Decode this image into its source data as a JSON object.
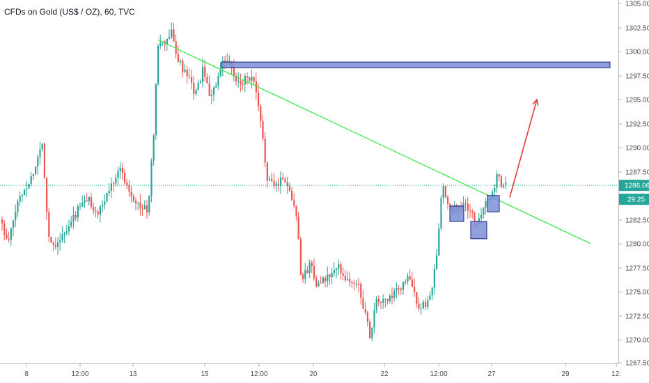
{
  "header": {
    "title": "CFDs on Gold (US$ / OZ), 60, TVC"
  },
  "chart_data": {
    "type": "candlestick",
    "ylim": [
      1267.5,
      1305.0
    ],
    "y_ticks": [
      "1305.00",
      "1302.50",
      "1300.00",
      "1297.50",
      "1295.00",
      "1292.50",
      "1290.00",
      "1287.50",
      "1282.50",
      "1280.00",
      "1277.50",
      "1275.00",
      "1272.50",
      "1270.00",
      "1267.50"
    ],
    "x_ticks": [
      "8",
      "12:00",
      "13",
      "15",
      "12:00",
      "20",
      "22",
      "12:00",
      "27",
      "29",
      "12:"
    ],
    "current_price": "1286.06",
    "countdown": "29:25",
    "price_path": [
      [
        0,
        1282.5
      ],
      [
        10,
        1279.8
      ],
      [
        25,
        1284.5
      ],
      [
        45,
        1287.0
      ],
      [
        60,
        1290.5
      ],
      [
        68,
        1281.0
      ],
      [
        75,
        1279.8
      ],
      [
        95,
        1281.2
      ],
      [
        110,
        1283.5
      ],
      [
        125,
        1284.7
      ],
      [
        140,
        1283.0
      ],
      [
        155,
        1285.5
      ],
      [
        170,
        1288.0
      ],
      [
        185,
        1285.5
      ],
      [
        200,
        1283.8
      ],
      [
        212,
        1283.5
      ],
      [
        220,
        1292.0
      ],
      [
        225,
        1300.5
      ],
      [
        235,
        1300.8
      ],
      [
        245,
        1302.0
      ],
      [
        255,
        1299.0
      ],
      [
        270,
        1297.0
      ],
      [
        280,
        1295.5
      ],
      [
        290,
        1298.0
      ],
      [
        300,
        1295.5
      ],
      [
        310,
        1296.5
      ],
      [
        320,
        1299.0
      ],
      [
        330,
        1298.5
      ],
      [
        340,
        1296.5
      ],
      [
        355,
        1297.5
      ],
      [
        365,
        1296.5
      ],
      [
        372,
        1293.0
      ],
      [
        378,
        1290.0
      ],
      [
        383,
        1286.5
      ],
      [
        395,
        1286.0
      ],
      [
        405,
        1287.0
      ],
      [
        415,
        1285.5
      ],
      [
        425,
        1283.0
      ],
      [
        432,
        1276.0
      ],
      [
        445,
        1278.0
      ],
      [
        455,
        1275.5
      ],
      [
        470,
        1276.5
      ],
      [
        485,
        1277.5
      ],
      [
        500,
        1276.0
      ],
      [
        515,
        1275.5
      ],
      [
        525,
        1272.0
      ],
      [
        530,
        1270.5
      ],
      [
        540,
        1274.0
      ],
      [
        555,
        1274.0
      ],
      [
        570,
        1275.0
      ],
      [
        585,
        1276.5
      ],
      [
        600,
        1273.5
      ],
      [
        612,
        1273.5
      ],
      [
        622,
        1276.5
      ],
      [
        628,
        1280.0
      ],
      [
        634,
        1286.0
      ],
      [
        645,
        1283.5
      ],
      [
        660,
        1284.0
      ],
      [
        675,
        1283.5
      ],
      [
        682,
        1281.5
      ],
      [
        695,
        1284.5
      ],
      [
        705,
        1285.0
      ],
      [
        712,
        1287.0
      ],
      [
        720,
        1286.0
      ],
      [
        728,
        1286.0
      ]
    ],
    "resistance_zone": {
      "y_top": 1298.9,
      "y_bottom": 1298.3
    },
    "trendline": {
      "from": [
        227,
        1301.2
      ],
      "to": [
        848,
        1280.0
      ]
    },
    "support_boxes": [
      {
        "x0": 646,
        "x1": 666,
        "y_top": 1283.9,
        "y_bottom": 1282.3
      },
      {
        "x0": 676,
        "x1": 699,
        "y_top": 1282.3,
        "y_bottom": 1280.5
      },
      {
        "x0": 700,
        "x1": 717,
        "y_top": 1285.0,
        "y_bottom": 1283.3
      }
    ],
    "projection_arrow": {
      "from": [
        732,
        1284.8
      ],
      "to": [
        771,
        1295.0
      ]
    }
  }
}
